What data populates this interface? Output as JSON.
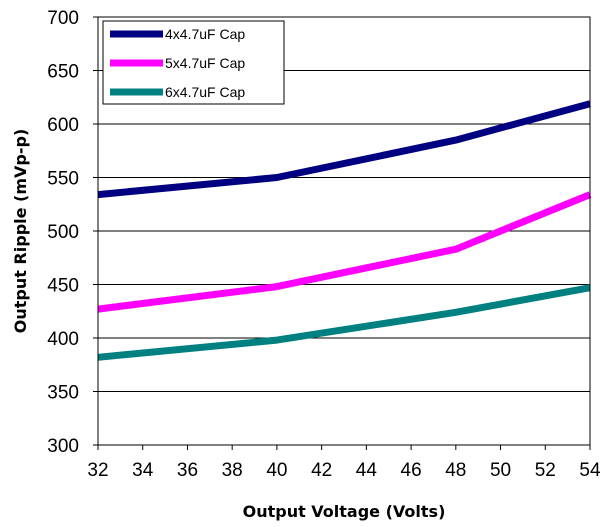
{
  "chart_data": {
    "type": "line",
    "xlabel": "Output Voltage (Volts)",
    "ylabel": "Output Ripple (mVp-p)",
    "xlim": [
      32,
      54
    ],
    "ylim": [
      300,
      700
    ],
    "x_ticks": [
      32,
      34,
      36,
      38,
      40,
      42,
      44,
      46,
      48,
      50,
      52,
      54
    ],
    "y_ticks": [
      300,
      350,
      400,
      450,
      500,
      550,
      600,
      650,
      700
    ],
    "grid": "horizontal",
    "legend": "top-left",
    "series": [
      {
        "name": "4x4.7uF Cap",
        "color": "#000080",
        "x": [
          32,
          40,
          48,
          54
        ],
        "y": [
          534,
          550,
          585,
          619
        ]
      },
      {
        "name": "5x4.7uF Cap",
        "color": "#ff00ff",
        "x": [
          32,
          40,
          48,
          54
        ],
        "y": [
          427,
          448,
          483,
          534
        ]
      },
      {
        "name": "6x4.7uF Cap",
        "color": "#008080",
        "x": [
          32,
          40,
          48,
          54
        ],
        "y": [
          382,
          398,
          424,
          447
        ]
      }
    ]
  }
}
